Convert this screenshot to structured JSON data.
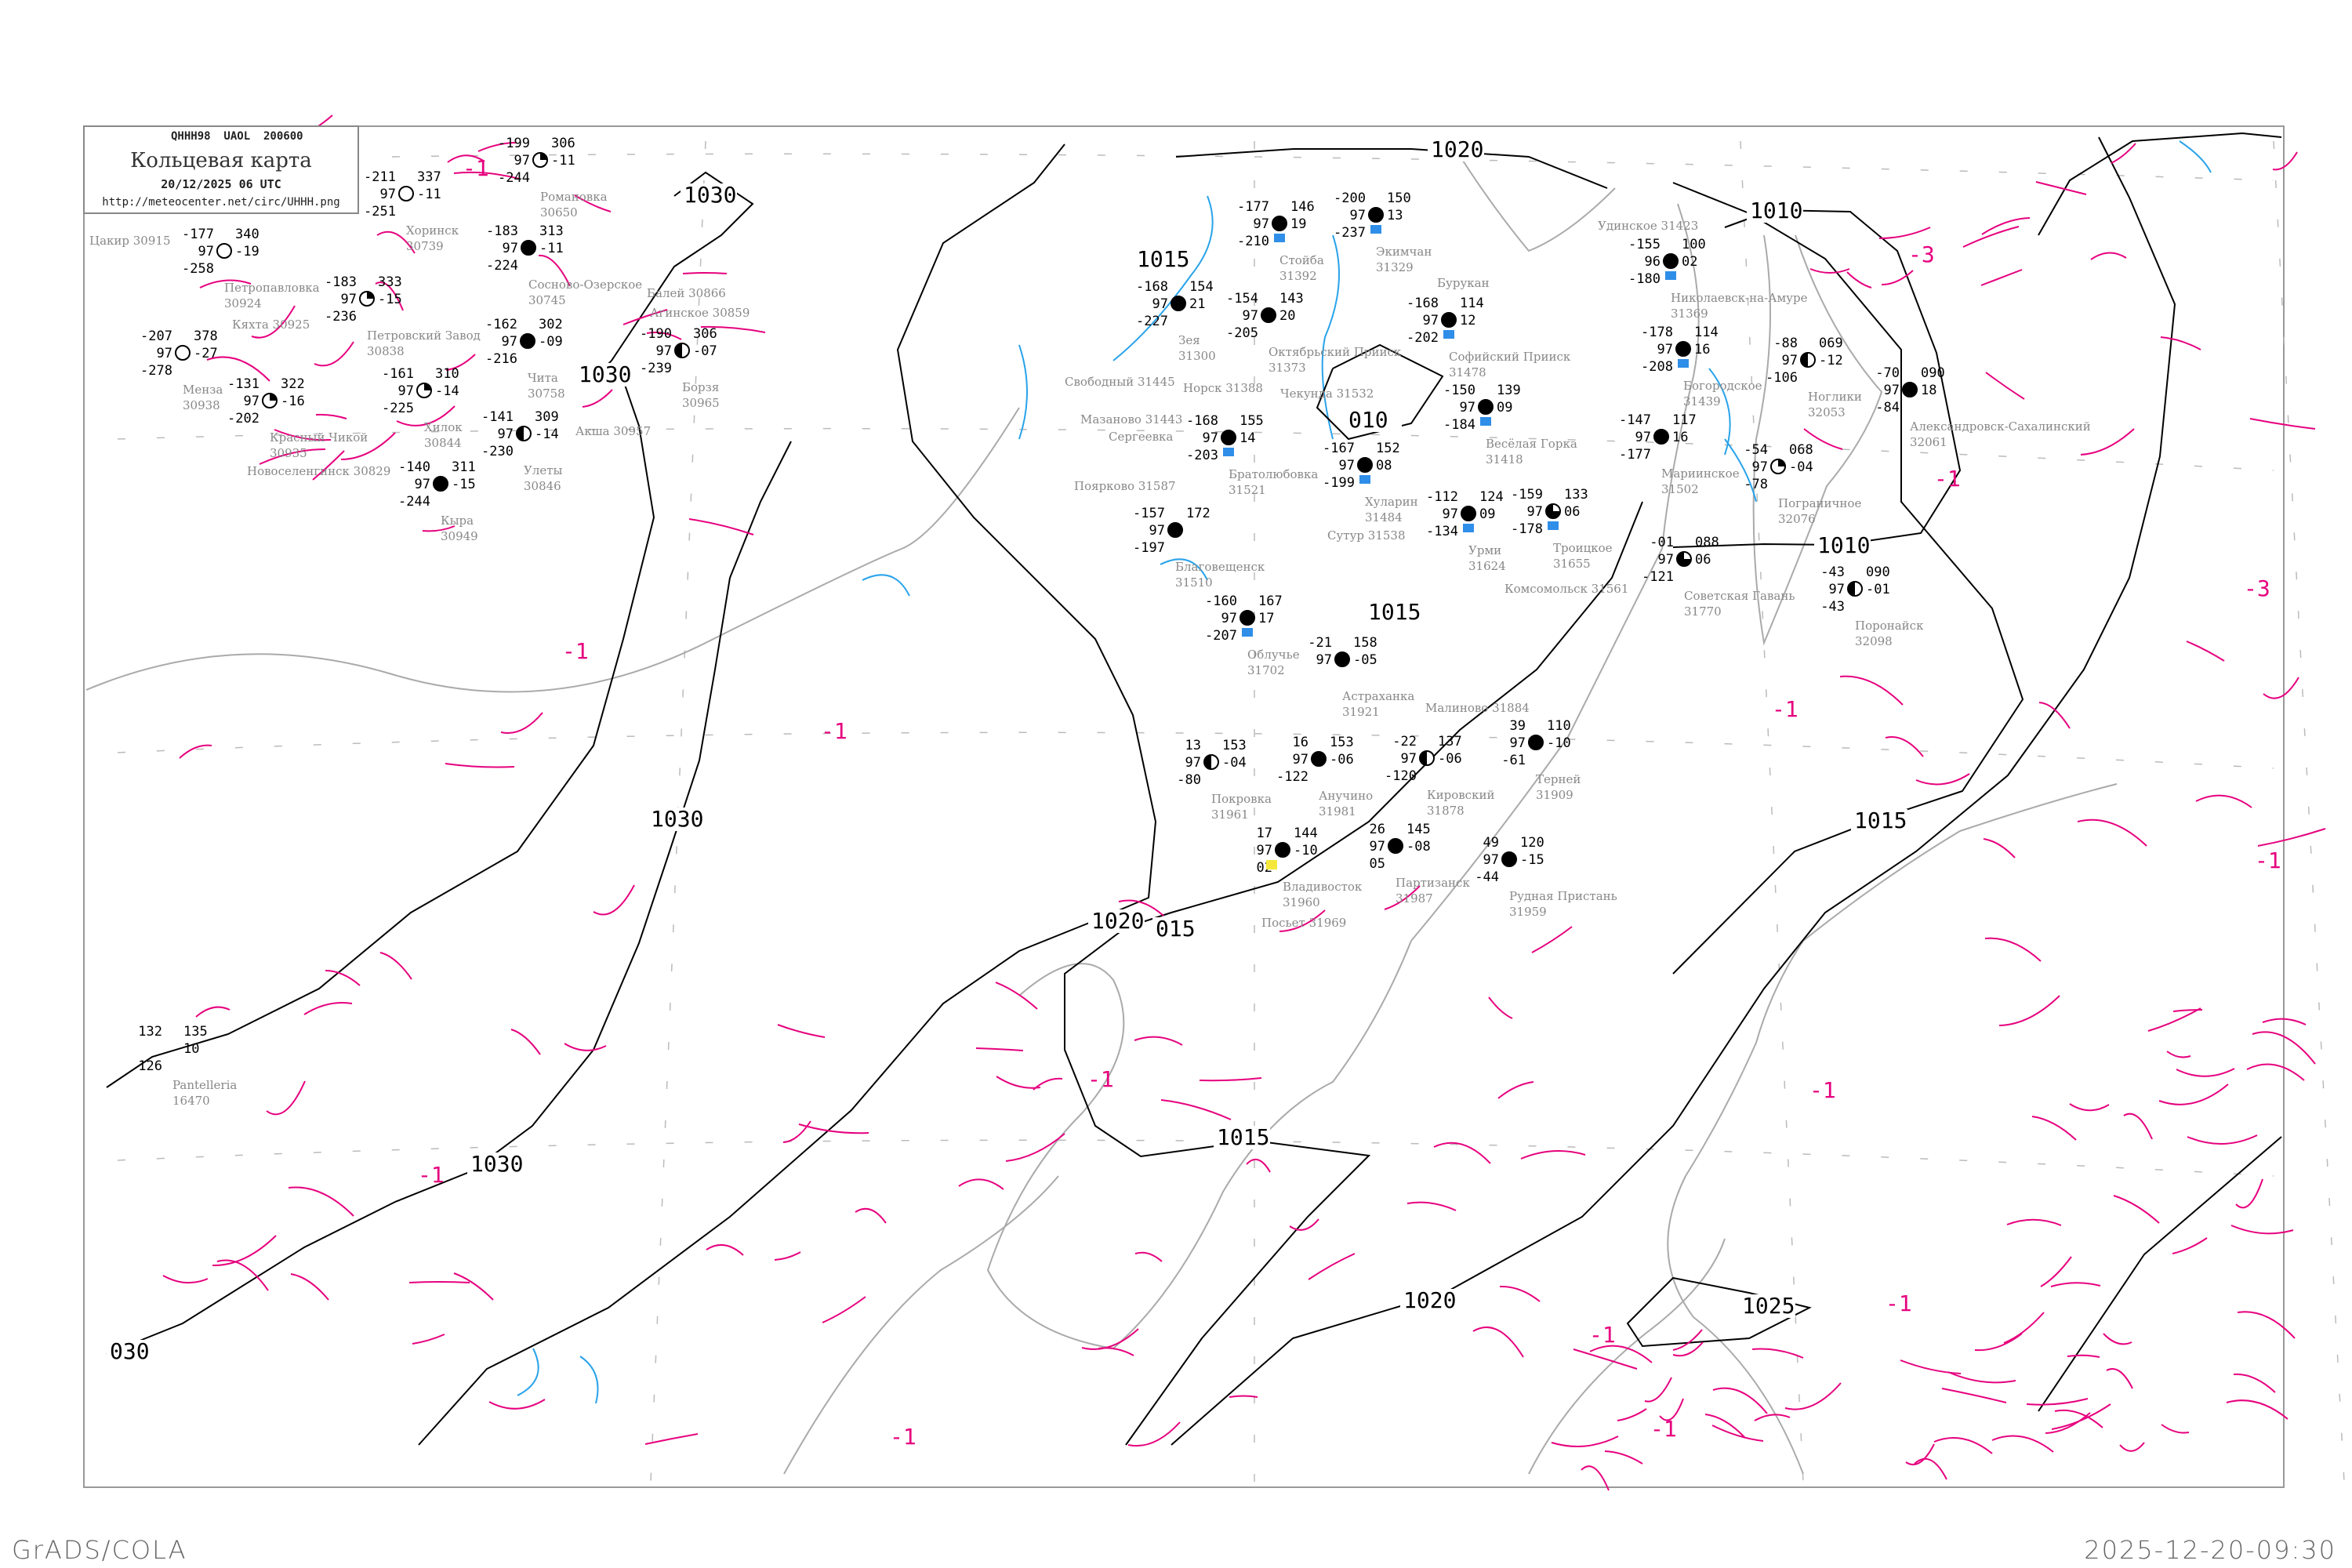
{
  "header": {
    "code_line": "QHHH98  UAOL  200600",
    "title": "Кольцевая карта",
    "datetime": "20/12/2025 06 UTC",
    "url": "http://meteocenter.net/circ/UHHH.png"
  },
  "footer": {
    "left": "GrADS/COLA",
    "right": "2025-12-20-09:30"
  },
  "colors": {
    "isobar": "#000000",
    "isotherm": "#e6007e",
    "coast": "#aaaaaa",
    "river": "#29a3ea",
    "station_name": "#888888",
    "snow_marker": "#2f8ee8"
  },
  "isobar_labels": [
    "1020",
    "1010",
    "1010",
    "1015",
    "1015",
    "1020",
    "015",
    "1015",
    "1020",
    "1025",
    "1030",
    "1030",
    "030",
    "1030",
    "1030",
    "1015",
    "010"
  ],
  "isotherm_labels": [
    "-1",
    "-3",
    "-3",
    "-1",
    "-1",
    "-1",
    "-1",
    "-1",
    "-1",
    "-1",
    "-1",
    "-1",
    "-1",
    "-1",
    "-1"
  ],
  "stations": [
    {
      "name": "Зея",
      "id": "31300",
      "t": "-168",
      "td": "-227",
      "pres": "97",
      "p": "154",
      "tend": "21",
      "cloud": "overcast"
    },
    {
      "name": "Октябрьский Прииск",
      "id": "31373",
      "t": "-154",
      "td": "-205",
      "pres": "97",
      "p": "143",
      "tend": "20",
      "cloud": "overcast"
    },
    {
      "name": "Стойба",
      "id": "31392",
      "t": "-177",
      "td": "-210",
      "pres": "97",
      "p": "146",
      "tend": "19",
      "cloud": "overcast"
    },
    {
      "name": "Экимчан",
      "id": "31329",
      "t": "-200",
      "td": "-237",
      "pres": "97",
      "p": "150",
      "tend": "13",
      "cloud": "overcast"
    },
    {
      "name": "Софийский Прииск",
      "id": "31478",
      "t": "-168",
      "td": "-202",
      "pres": "97",
      "p": "114",
      "tend": "12",
      "cloud": "overcast"
    },
    {
      "name": "Весёлая Горка",
      "id": "31418",
      "t": "-150",
      "td": "-184",
      "pres": "97",
      "p": "139",
      "tend": "09",
      "cloud": "overcast"
    },
    {
      "name": "Хуларин",
      "id": "31484",
      "t": "-167",
      "td": "-199",
      "pres": "97",
      "p": "152",
      "tend": "08",
      "cloud": "overcast"
    },
    {
      "name": "Братолюбовка",
      "id": "31521",
      "t": "-168",
      "td": "-203",
      "pres": "97",
      "p": "155",
      "tend": "14",
      "cloud": "overcast"
    },
    {
      "name": "Благовещенск",
      "id": "31510",
      "t": "-157",
      "td": "-197",
      "pres": "97",
      "p": "172",
      "tend": "",
      "cloud": "overcast"
    },
    {
      "name": "Облучье",
      "id": "31702",
      "t": "-160",
      "td": "-207",
      "pres": "97",
      "p": "167",
      "tend": "17",
      "cloud": "overcast"
    },
    {
      "name": "Урми",
      "id": "31624",
      "t": "-112",
      "td": "-134",
      "pres": "97",
      "p": "124",
      "tend": "09",
      "cloud": "overcast"
    },
    {
      "name": "Троицкое",
      "id": "31655",
      "t": "-159",
      "td": "-178",
      "pres": "97",
      "p": "133",
      "tend": "06",
      "cloud": "three-quarter"
    },
    {
      "name": "Владивосток",
      "id": "31960",
      "t": "17",
      "td": "02",
      "pres": "97",
      "p": "144",
      "tend": "-10",
      "cloud": "overcast"
    },
    {
      "name": "Партизанск",
      "id": "31987",
      "t": "26",
      "td": "05",
      "pres": "97",
      "p": "145",
      "tend": "-08",
      "cloud": "overcast"
    },
    {
      "name": "Анучино",
      "id": "31981",
      "t": "16",
      "td": "-122",
      "pres": "97",
      "p": "153",
      "tend": "-06",
      "cloud": "overcast"
    },
    {
      "name": "Покровка",
      "id": "31961",
      "t": "13",
      "td": "-80",
      "pres": "97",
      "p": "153",
      "tend": "-04",
      "cloud": "half"
    },
    {
      "name": "Астраханка",
      "id": "31921",
      "t": "-21",
      "td": "",
      "pres": "97",
      "p": "158",
      "tend": "-05",
      "cloud": "overcast"
    },
    {
      "name": "Кировский",
      "id": "31878",
      "t": "-22",
      "td": "-120",
      "pres": "97",
      "p": "137",
      "tend": "-06",
      "cloud": "half"
    },
    {
      "name": "Терней",
      "id": "31909",
      "t": "39",
      "td": "-61",
      "pres": "97",
      "p": "110",
      "tend": "-10",
      "cloud": "overcast"
    },
    {
      "name": "Рудная Пристань",
      "id": "31959",
      "t": "49",
      "td": "-44",
      "pres": "97",
      "p": "120",
      "tend": "-15",
      "cloud": "overcast"
    },
    {
      "name": "Николаевск-на-Амуре",
      "id": "31369",
      "t": "-155",
      "td": "-180",
      "pres": "96",
      "p": "100",
      "tend": "02",
      "cloud": "overcast"
    },
    {
      "name": "Богородское",
      "id": "31439",
      "t": "-178",
      "td": "-208",
      "pres": "97",
      "p": "114",
      "tend": "16",
      "cloud": "overcast"
    },
    {
      "name": "Мариинское",
      "id": "31502",
      "t": "-147",
      "td": "-177",
      "pres": "97",
      "p": "117",
      "tend": "16",
      "cloud": "overcast"
    },
    {
      "name": "Ноглики",
      "id": "32053",
      "t": "-88",
      "td": "-106",
      "pres": "97",
      "p": "069",
      "tend": "-12",
      "cloud": "half"
    },
    {
      "name": "Александровск-Сахалинский",
      "id": "32061",
      "t": "-70",
      "td": "-84",
      "pres": "97",
      "p": "090",
      "tend": "18",
      "cloud": "overcast"
    },
    {
      "name": "Пограничное",
      "id": "32076",
      "t": "-54",
      "td": "-78",
      "pres": "97",
      "p": "068",
      "tend": "-04",
      "cloud": "quarter"
    },
    {
      "name": "Советская Гавань",
      "id": "31770",
      "t": "-01",
      "td": "-121",
      "pres": "97",
      "p": "088",
      "tend": "06",
      "cloud": "three-quarter"
    },
    {
      "name": "Поронайск",
      "id": "32098",
      "t": "-43",
      "td": "-43",
      "pres": "97",
      "p": "090",
      "tend": "-01",
      "cloud": "half"
    },
    {
      "name": "Хоринск",
      "id": "30739",
      "t": "-211",
      "td": "-251",
      "pres": "97",
      "p": "337",
      "tend": "-11",
      "cloud": "clear"
    },
    {
      "name": "Романовка",
      "id": "30650",
      "t": "-199",
      "td": "-244",
      "pres": "97",
      "p": "306",
      "tend": "-11",
      "cloud": "quarter"
    },
    {
      "name": "Сосново-Озерское",
      "id": "30745",
      "t": "-183",
      "td": "-224",
      "pres": "97",
      "p": "313",
      "tend": "-11",
      "cloud": "overcast"
    },
    {
      "name": "Чита",
      "id": "30758",
      "t": "-162",
      "td": "-216",
      "pres": "97",
      "p": "302",
      "tend": "-09",
      "cloud": "overcast"
    },
    {
      "name": "Петровский Завод",
      "id": "30838",
      "t": "-183",
      "td": "-236",
      "pres": "97",
      "p": "333",
      "tend": "-15",
      "cloud": "quarter"
    },
    {
      "name": "Хилок",
      "id": "30844",
      "t": "-161",
      "td": "-225",
      "pres": "97",
      "p": "310",
      "tend": "-14",
      "cloud": "quarter"
    },
    {
      "name": "Улеты",
      "id": "30846",
      "t": "-141",
      "td": "-230",
      "pres": "97",
      "p": "309",
      "tend": "-14",
      "cloud": "half"
    },
    {
      "name": "Красный Чикой",
      "id": "30935",
      "t": "-131",
      "td": "-202",
      "pres": "97",
      "p": "322",
      "tend": "-16",
      "cloud": "quarter"
    },
    {
      "name": "Кыра",
      "id": "30949",
      "t": "-140",
      "td": "-244",
      "pres": "97",
      "p": "311",
      "tend": "-15",
      "cloud": "overcast"
    },
    {
      "name": "Борзя",
      "id": "30965",
      "t": "-190",
      "td": "-239",
      "pres": "97",
      "p": "306",
      "tend": "-07",
      "cloud": "half"
    },
    {
      "name": "Петропавловка",
      "id": "30924",
      "t": "-177",
      "td": "-258",
      "pres": "97",
      "p": "340",
      "tend": "-19",
      "cloud": "clear"
    },
    {
      "name": "Менза",
      "id": "30938",
      "t": "-207",
      "td": "-278",
      "pres": "97",
      "p": "378",
      "tend": "-27",
      "cloud": "clear"
    },
    {
      "name": "Pantelleria",
      "id": "16470",
      "t": "132",
      "td": "126",
      "pres": "",
      "p": "135",
      "tend": "10",
      "cloud": "missing"
    }
  ],
  "extra_place_names": [
    "Цакир 30915",
    "Кяхта 30925",
    "Новоселенгинск 30829",
    "Акша 30957",
    "Агинское 30859",
    "Балей 30866",
    "Чекунда 31532",
    "Норск 31388",
    "Мазаново 31443",
    "Свободный 31445",
    "Сергеевка",
    "Поярково 31587",
    "Сутур 31538",
    "Комсомольск 31561",
    "Удинское 31423",
    "Посьет 31969",
    "Малиново 31884",
    "Бурукан"
  ]
}
